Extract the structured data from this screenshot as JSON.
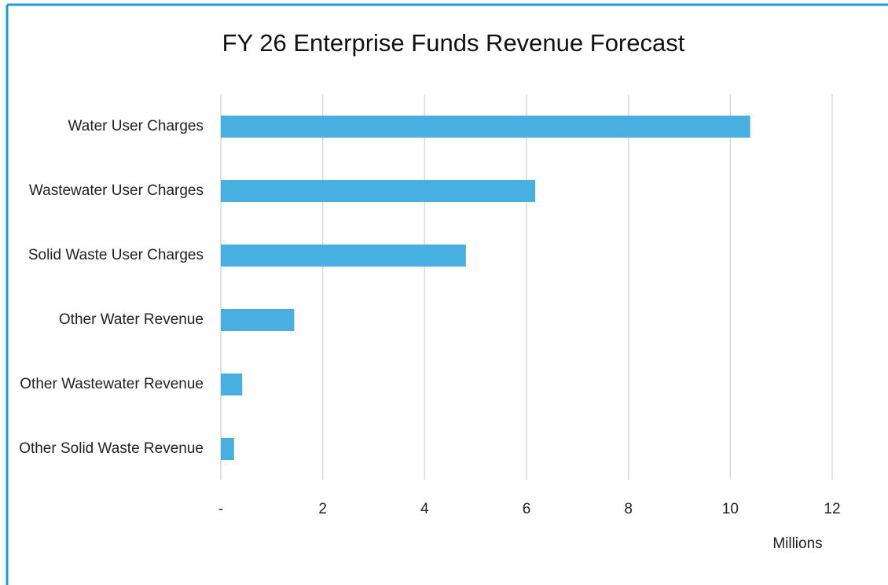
{
  "chart_data": {
    "type": "hbar",
    "title": "FY 26 Enterprise Funds Revenue Forecast",
    "categories": [
      "Water User Charges",
      "Wastewater User Charges",
      "Solid Waste User Charges",
      "Other Water Revenue",
      "Other Wastewater Revenue",
      "Other Solid Waste Revenue"
    ],
    "values": [
      10.39,
      6.17,
      4.81,
      1.44,
      0.42,
      0.26
    ],
    "color": "#47b0e0",
    "xlabel": "Millions",
    "xlim": [
      0,
      12
    ],
    "xticks": [
      {
        "value": 0,
        "label": "-"
      },
      2,
      4,
      6,
      8,
      10,
      12
    ],
    "grid": true
  }
}
